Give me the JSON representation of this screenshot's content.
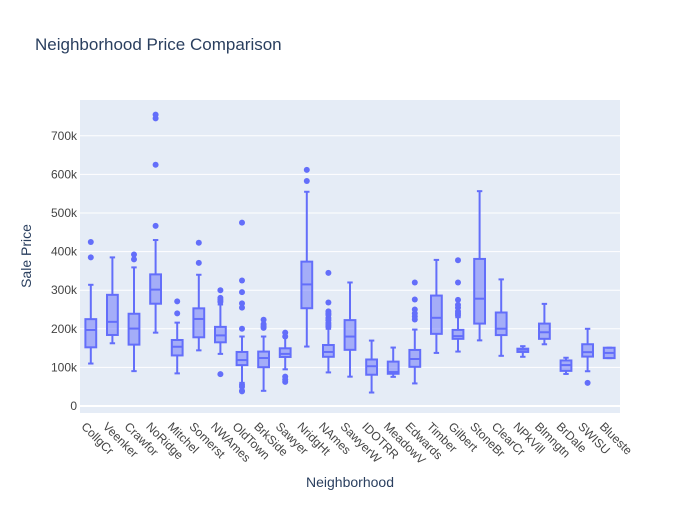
{
  "chart_data": {
    "type": "box",
    "title": "Neighborhood Price Comparison",
    "xlabel": "Neighborhood",
    "ylabel": "Sale Price",
    "ylim": [
      0,
      780000
    ],
    "yticks": [
      0,
      100000,
      200000,
      300000,
      400000,
      500000,
      600000,
      700000
    ],
    "ytick_labels": [
      "0",
      "100k",
      "200k",
      "300k",
      "400k",
      "500k",
      "600k",
      "700k"
    ],
    "grid": true,
    "colors": {
      "box_line": "#636efa",
      "box_fill": "rgba(99,110,250,0.5)",
      "plot_bg": "#e5ecf6",
      "grid": "#ffffff"
    },
    "categories": [
      "CollgCr",
      "Veenker",
      "Crawfor",
      "NoRidge",
      "Mitchel",
      "Somerst",
      "NWAmes",
      "OldTown",
      "BrkSide",
      "Sawyer",
      "NridgHt",
      "NAmes",
      "SawyerW",
      "IDOTRR",
      "MeadowV",
      "Edwards",
      "Timber",
      "Gilbert",
      "StoneBr",
      "ClearCr",
      "NPkVill",
      "Blmngtn",
      "BrDale",
      "SWISU",
      "Blueste"
    ],
    "boxes": [
      {
        "name": "CollgCr",
        "min": 110000,
        "q1": 152000,
        "median": 197000,
        "q3": 225000,
        "max": 314000,
        "outliers": [
          385000,
          424870
        ]
      },
      {
        "name": "Veenker",
        "min": 162500,
        "q1": 184000,
        "median": 218000,
        "q3": 288000,
        "max": 385000,
        "outliers": []
      },
      {
        "name": "Crawfor",
        "min": 90350,
        "q1": 159000,
        "median": 200624,
        "q3": 239000,
        "max": 359100,
        "outliers": [
          380000,
          392500
        ]
      },
      {
        "name": "NoRidge",
        "min": 190000,
        "q1": 265000,
        "median": 301500,
        "q3": 341000,
        "max": 430000,
        "outliers": [
          466500,
          625000,
          745000,
          755000
        ]
      },
      {
        "name": "Mitchel",
        "min": 84500,
        "q1": 131000,
        "median": 153500,
        "q3": 171000,
        "max": 216000,
        "outliers": [
          240000,
          271000
        ]
      },
      {
        "name": "Somerst",
        "min": 144152,
        "q1": 177975,
        "median": 225500,
        "q3": 253000,
        "max": 340000,
        "outliers": [
          370878,
          423000
        ]
      },
      {
        "name": "NWAmes",
        "min": 135000,
        "q1": 165000,
        "median": 182900,
        "q3": 205000,
        "max": 263000,
        "outliers": [
          82500,
          270000,
          275000,
          280000,
          299800
        ]
      },
      {
        "name": "OldTown",
        "min": 60000,
        "q1": 105900,
        "median": 119000,
        "q3": 140000,
        "max": 180000,
        "outliers": [
          37900,
          39300,
          50000,
          55000,
          200000,
          255000,
          265979,
          295000,
          325000,
          475000
        ]
      },
      {
        "name": "BrkSide",
        "min": 39300,
        "q1": 100500,
        "median": 124300,
        "q3": 141000,
        "max": 180000,
        "outliers": [
          202500,
          207000,
          212000,
          223500
        ]
      },
      {
        "name": "Sawyer",
        "min": 95000,
        "q1": 127000,
        "median": 135000,
        "q3": 149500,
        "max": 179000,
        "outliers": [
          62383,
          68400,
          76000,
          180000,
          190000
        ]
      },
      {
        "name": "NridgHt",
        "min": 154000,
        "q1": 253293,
        "median": 315000,
        "q3": 374000,
        "max": 555000,
        "outliers": [
          582933,
          611657
        ]
      },
      {
        "name": "NAmes",
        "min": 87000,
        "q1": 127500,
        "median": 140000,
        "q3": 158000,
        "max": 200000,
        "outliers": [
          205000,
          210000,
          215000,
          222500,
          228000,
          236000,
          240000,
          245000,
          268000,
          345000
        ]
      },
      {
        "name": "SawyerW",
        "min": 76000,
        "q1": 145500,
        "median": 179900,
        "q3": 222500,
        "max": 320000,
        "outliers": []
      },
      {
        "name": "IDOTRR",
        "min": 34900,
        "q1": 81000,
        "median": 103000,
        "q3": 120500,
        "max": 169500,
        "outliers": []
      },
      {
        "name": "MeadowV",
        "min": 75500,
        "q1": 83500,
        "median": 88000,
        "q3": 115000,
        "max": 151400,
        "outliers": []
      },
      {
        "name": "Edwards",
        "min": 58500,
        "q1": 101500,
        "median": 121750,
        "q3": 145225,
        "max": 198000,
        "outliers": [
          224000,
          232000,
          240000,
          250000,
          276000,
          320000
        ]
      },
      {
        "name": "Timber",
        "min": 137500,
        "q1": 186900,
        "median": 228475,
        "q3": 286115,
        "max": 378500,
        "outliers": []
      },
      {
        "name": "Gilbert",
        "min": 141000,
        "q1": 174000,
        "median": 181000,
        "q3": 197200,
        "max": 230000,
        "outliers": [
          235000,
          240000,
          245000,
          255000,
          262000,
          275000,
          320000,
          377500
        ]
      },
      {
        "name": "StoneBr",
        "min": 170000,
        "q1": 213500,
        "median": 278000,
        "q3": 381000,
        "max": 556581,
        "outliers": []
      },
      {
        "name": "ClearCr",
        "min": 130000,
        "q1": 183750,
        "median": 200250,
        "q3": 242225,
        "max": 328000,
        "outliers": []
      },
      {
        "name": "NPkVill",
        "min": 127500,
        "q1": 140000,
        "median": 146000,
        "q3": 148500,
        "max": 155000,
        "outliers": []
      },
      {
        "name": "Blmngtn",
        "min": 159895,
        "q1": 174000,
        "median": 191000,
        "q3": 213490,
        "max": 264561,
        "outliers": []
      },
      {
        "name": "BrDale",
        "min": 83000,
        "q1": 91000,
        "median": 106000,
        "q3": 118000,
        "max": 125000,
        "outliers": []
      },
      {
        "name": "SWISU",
        "min": 90000,
        "q1": 128000,
        "median": 139500,
        "q3": 160000,
        "max": 200000,
        "outliers": [
          60000
        ]
      },
      {
        "name": "Blueste",
        "min": 124000,
        "q1": 124000,
        "median": 137500,
        "q3": 151000,
        "max": 151000,
        "outliers": []
      }
    ]
  }
}
